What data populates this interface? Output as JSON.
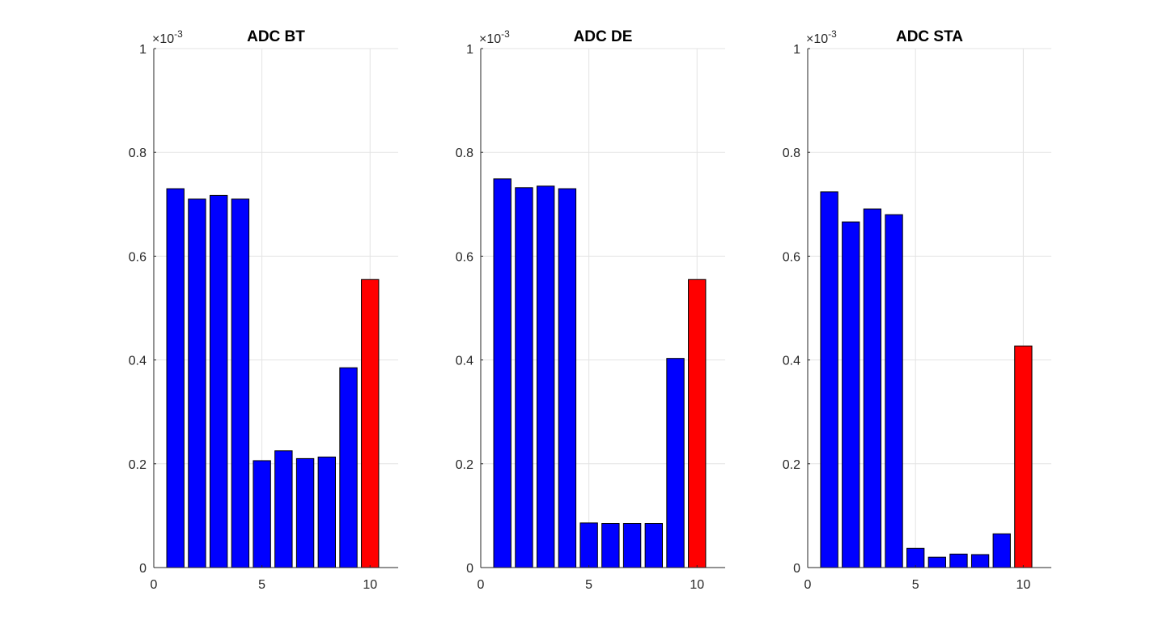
{
  "chart_data": [
    {
      "type": "bar",
      "title": "ADC BT",
      "exponent_base": "×10",
      "exponent_power": "-3",
      "x": [
        1,
        2,
        3,
        4,
        5,
        6,
        7,
        8,
        9,
        10
      ],
      "values": [
        0.73,
        0.71,
        0.717,
        0.71,
        0.206,
        0.225,
        0.21,
        0.213,
        0.385,
        0.555
      ],
      "bar_colors": [
        "#0000ff",
        "#0000ff",
        "#0000ff",
        "#0000ff",
        "#0000ff",
        "#0000ff",
        "#0000ff",
        "#0000ff",
        "#0000ff",
        "#ff0000"
      ],
      "xlim": [
        0,
        11.3
      ],
      "ylim": [
        0,
        1
      ],
      "xticks": [
        0,
        5,
        10
      ],
      "xtick_labels": [
        "0",
        "5",
        "10"
      ],
      "yticks": [
        0,
        0.2,
        0.4,
        0.6,
        0.8,
        1
      ],
      "ytick_labels": [
        "0",
        "0.2",
        "0.4",
        "0.6",
        "0.8",
        "1"
      ],
      "grid": true
    },
    {
      "type": "bar",
      "title": "ADC DE",
      "exponent_base": "×10",
      "exponent_power": "-3",
      "x": [
        1,
        2,
        3,
        4,
        5,
        6,
        7,
        8,
        9,
        10
      ],
      "values": [
        0.749,
        0.732,
        0.735,
        0.73,
        0.086,
        0.085,
        0.085,
        0.085,
        0.403,
        0.555
      ],
      "bar_colors": [
        "#0000ff",
        "#0000ff",
        "#0000ff",
        "#0000ff",
        "#0000ff",
        "#0000ff",
        "#0000ff",
        "#0000ff",
        "#0000ff",
        "#ff0000"
      ],
      "xlim": [
        0,
        11.3
      ],
      "ylim": [
        0,
        1
      ],
      "xticks": [
        0,
        5,
        10
      ],
      "xtick_labels": [
        "0",
        "5",
        "10"
      ],
      "yticks": [
        0,
        0.2,
        0.4,
        0.6,
        0.8,
        1
      ],
      "ytick_labels": [
        "0",
        "0.2",
        "0.4",
        "0.6",
        "0.8",
        "1"
      ],
      "grid": true
    },
    {
      "type": "bar",
      "title": "ADC STA",
      "exponent_base": "×10",
      "exponent_power": "-3",
      "x": [
        1,
        2,
        3,
        4,
        5,
        6,
        7,
        8,
        9,
        10
      ],
      "values": [
        0.724,
        0.666,
        0.691,
        0.68,
        0.037,
        0.02,
        0.026,
        0.025,
        0.065,
        0.427
      ],
      "bar_colors": [
        "#0000ff",
        "#0000ff",
        "#0000ff",
        "#0000ff",
        "#0000ff",
        "#0000ff",
        "#0000ff",
        "#0000ff",
        "#0000ff",
        "#ff0000"
      ],
      "xlim": [
        0,
        11.3
      ],
      "ylim": [
        0,
        1
      ],
      "xticks": [
        0,
        5,
        10
      ],
      "xtick_labels": [
        "0",
        "5",
        "10"
      ],
      "yticks": [
        0,
        0.2,
        0.4,
        0.6,
        0.8,
        1
      ],
      "ytick_labels": [
        "0",
        "0.2",
        "0.4",
        "0.6",
        "0.8",
        "1"
      ],
      "grid": true
    }
  ],
  "colors": {
    "grid": "#e3e3e3",
    "axis": "#262626",
    "bar_edge": "#000000"
  }
}
